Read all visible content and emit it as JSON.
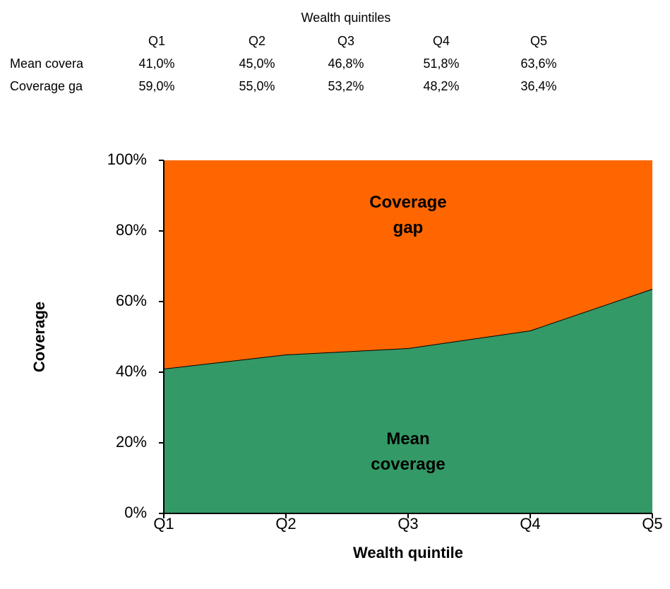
{
  "table": {
    "title": "Wealth quintiles",
    "header": [
      "Q1",
      "Q2",
      "Q3",
      "Q4",
      "Q5"
    ],
    "rows": [
      [
        "Mean covera",
        "41,0%",
        "45,0%",
        "46,8%",
        "51,8%",
        "63,6%"
      ],
      [
        "Coverage ga",
        "59,0%",
        "55,0%",
        "53,2%",
        "48,2%",
        "36,4%"
      ]
    ]
  },
  "chart_data": {
    "type": "stacked-area",
    "x_label": "Wealth quintile",
    "y_label": "Coverage",
    "categories": [
      "Q1",
      "Q2",
      "Q3",
      "Q4",
      "Q5"
    ],
    "series": [
      {
        "name": "Mean coverage",
        "color": "#339966",
        "values": [
          41.0,
          45.0,
          46.8,
          51.8,
          63.6
        ]
      },
      {
        "name": "Coverage gap",
        "color": "#ff6600",
        "values": [
          59.0,
          55.0,
          53.2,
          48.2,
          36.4
        ]
      }
    ],
    "ylim": [
      0,
      100
    ],
    "yticks": [
      {
        "value": 0,
        "label": "0%"
      },
      {
        "value": 20,
        "label": "20%"
      },
      {
        "value": 40,
        "label": "40%"
      },
      {
        "value": 60,
        "label": "60%"
      },
      {
        "value": 80,
        "label": "80%"
      },
      {
        "value": 100,
        "label": "100%"
      }
    ]
  }
}
